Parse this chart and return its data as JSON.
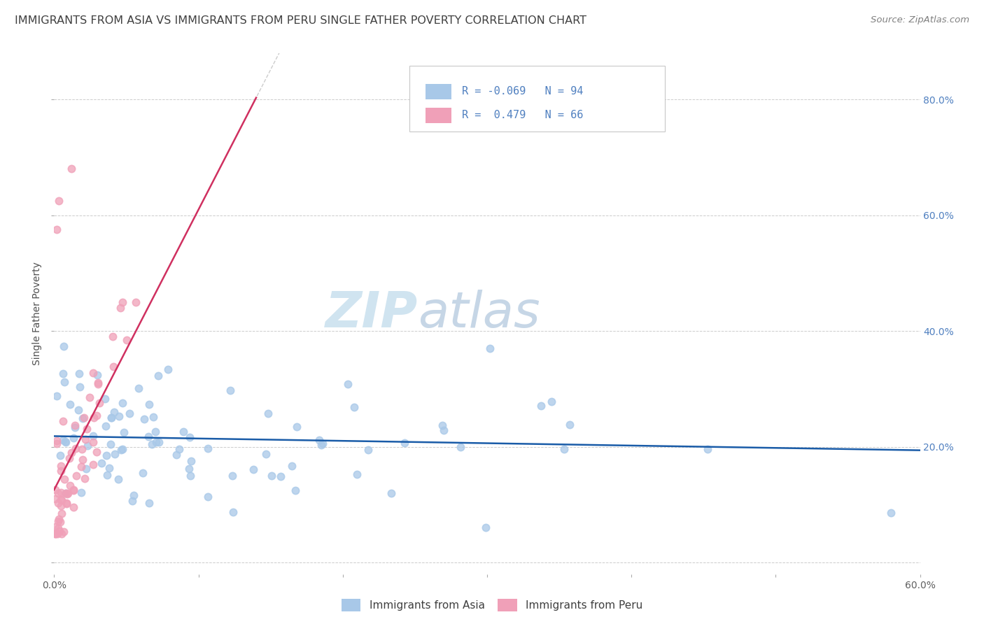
{
  "title": "IMMIGRANTS FROM ASIA VS IMMIGRANTS FROM PERU SINGLE FATHER POVERTY CORRELATION CHART",
  "source": "Source: ZipAtlas.com",
  "ylabel": "Single Father Poverty",
  "R_asia": -0.069,
  "N_asia": 94,
  "R_peru": 0.479,
  "N_peru": 66,
  "watermark_zip": "ZIP",
  "watermark_atlas": "atlas",
  "legend_labels": [
    "Immigrants from Asia",
    "Immigrants from Peru"
  ],
  "color_asia": "#a8c8e8",
  "color_peru": "#f0a0b8",
  "line_color_asia": "#1a5ca8",
  "line_color_peru": "#d03060",
  "background_color": "#ffffff",
  "grid_color": "#cccccc",
  "title_color": "#404040",
  "source_color": "#808080",
  "right_tick_color": "#5080c0",
  "title_fontsize": 11.5,
  "axis_label_fontsize": 10,
  "tick_fontsize": 10,
  "watermark_fontsize_zip": 52,
  "watermark_fontsize_atlas": 52,
  "watermark_color": "#d0e4f0"
}
